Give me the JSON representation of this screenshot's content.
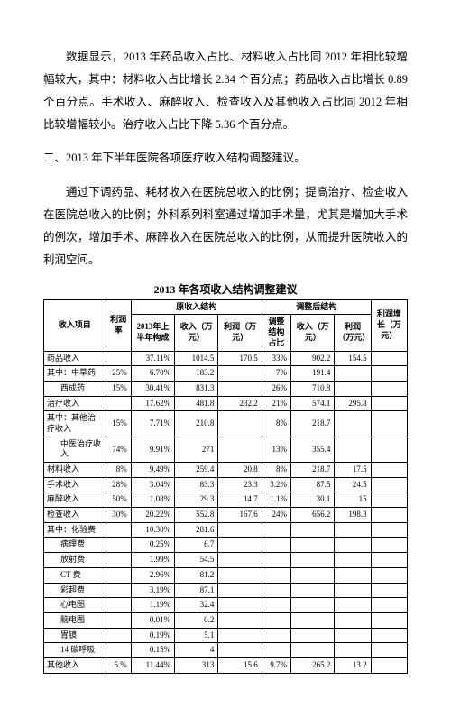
{
  "paragraphs": {
    "p1": "数据显示，2013 年药品收入占比、材料收入占比同 2012 年相比较增幅较大，其中：材料收入占比增长 2.34 个百分点；药品收入占比增长 0.89 个百分点。手术收入、麻醉收入、检查收入及其他收入占比同 2012 年相比较增幅较小。治疗收入占比下降 5.36 个百分点。",
    "p2": "二、2013 年下半年医院各项医疗收入结构调整建议。",
    "p3": "通过下调药品、耗材收入在医院总收入的比例；提高治疗、检查收入在医院总收入的比例；外科系列科室通过增加手术量，尤其是增加大手术的例次，增加手术、麻醉收入在医院总收入的比例，从而提升医院收入的利润空间。"
  },
  "table_title": "2013 年各项收入结构调整建议",
  "headers": {
    "item": "收入项目",
    "rate": "利润率",
    "orig": "原收入结构",
    "adj": "调整后结构",
    "profit_grow": "利润增长（万元）",
    "half2013": "2013年上半年构成",
    "income_w": "收入（万元）",
    "profit_w": "利润（万元）",
    "adj_ratio": "调整结构占比",
    "income_w2": "收入（万元）",
    "profit_w2": "利润（万元）"
  },
  "rows": [
    {
      "label": "药品收入",
      "indent": 0,
      "rate": "",
      "c0": "37.11%",
      "c1": "1014.5",
      "c2": "170.5",
      "c3": "33%",
      "c4": "902.2",
      "c5": "154.5",
      "c6": ""
    },
    {
      "label": "其中：中草药",
      "indent": 0,
      "rate": "25%",
      "c0": "6.70%",
      "c1": "183.2",
      "c2": "",
      "c3": "7%",
      "c4": "191.4",
      "c5": "",
      "c6": ""
    },
    {
      "label": "西成药",
      "indent": 1,
      "rate": "15%",
      "c0": "30.41%",
      "c1": "831.3",
      "c2": "",
      "c3": "26%",
      "c4": "710.8",
      "c5": "",
      "c6": ""
    },
    {
      "label": "治疗收入",
      "indent": 0,
      "rate": "",
      "c0": "17.62%",
      "c1": "481.8",
      "c2": "232.2",
      "c3": "21%",
      "c4": "574.1",
      "c5": "295.8",
      "c6": ""
    },
    {
      "label": "其中：其他治疗收入",
      "indent": 0,
      "rate": "15%",
      "c0": "7.71%",
      "c1": "210.8",
      "c2": "",
      "c3": "8%",
      "c4": "218.7",
      "c5": "",
      "c6": ""
    },
    {
      "label": "中医治疗收入",
      "indent": 1,
      "rate": "74%",
      "c0": "9.91%",
      "c1": "271",
      "c2": "",
      "c3": "13%",
      "c4": "355.4",
      "c5": "",
      "c6": ""
    },
    {
      "label": "材料收入",
      "indent": 0,
      "rate": "8%",
      "c0": "9.49%",
      "c1": "259.4",
      "c2": "20.8",
      "c3": "8%",
      "c4": "218.7",
      "c5": "17.5",
      "c6": ""
    },
    {
      "label": "手术收入",
      "indent": 0,
      "rate": "28%",
      "c0": "3.04%",
      "c1": "83.3",
      "c2": "23.3",
      "c3": "3.2%",
      "c4": "87.5",
      "c5": "24.5",
      "c6": ""
    },
    {
      "label": "麻醉收入",
      "indent": 0,
      "rate": "50%",
      "c0": "1.08%",
      "c1": "29.3",
      "c2": "14.7",
      "c3": "1.1%",
      "c4": "30.1",
      "c5": "15",
      "c6": ""
    },
    {
      "label": "检查收入",
      "indent": 0,
      "rate": "30%",
      "c0": "20.22%",
      "c1": "552.8",
      "c2": "167.6",
      "c3": "24%",
      "c4": "656.2",
      "c5": "198.3",
      "c6": ""
    },
    {
      "label": "其中：化验费",
      "indent": 0,
      "rate": "",
      "c0": "10.30%",
      "c1": "281.6",
      "c2": "",
      "c3": "",
      "c4": "",
      "c5": "",
      "c6": ""
    },
    {
      "label": "病理费",
      "indent": 1,
      "rate": "",
      "c0": "0.25%",
      "c1": "6.7",
      "c2": "",
      "c3": "",
      "c4": "",
      "c5": "",
      "c6": ""
    },
    {
      "label": "放射费",
      "indent": 1,
      "rate": "",
      "c0": "1.99%",
      "c1": "54.5",
      "c2": "",
      "c3": "",
      "c4": "",
      "c5": "",
      "c6": ""
    },
    {
      "label": "CT 费",
      "indent": 1,
      "rate": "",
      "c0": "2.96%",
      "c1": "81.2",
      "c2": "",
      "c3": "",
      "c4": "",
      "c5": "",
      "c6": ""
    },
    {
      "label": "彩超费",
      "indent": 1,
      "rate": "",
      "c0": "3.19%",
      "c1": "87.1",
      "c2": "",
      "c3": "",
      "c4": "",
      "c5": "",
      "c6": ""
    },
    {
      "label": "心电图",
      "indent": 1,
      "rate": "",
      "c0": "1.19%",
      "c1": "32.4",
      "c2": "",
      "c3": "",
      "c4": "",
      "c5": "",
      "c6": ""
    },
    {
      "label": "脑电图",
      "indent": 1,
      "rate": "",
      "c0": "0.01%",
      "c1": "0.2",
      "c2": "",
      "c3": "",
      "c4": "",
      "c5": "",
      "c6": ""
    },
    {
      "label": "胃镜",
      "indent": 1,
      "rate": "",
      "c0": "0.19%",
      "c1": "5.1",
      "c2": "",
      "c3": "",
      "c4": "",
      "c5": "",
      "c6": ""
    },
    {
      "label": "14 碳呼吸",
      "indent": 1,
      "rate": "",
      "c0": "0.15%",
      "c1": "4",
      "c2": "",
      "c3": "",
      "c4": "",
      "c5": "",
      "c6": ""
    },
    {
      "label": "其他收入",
      "indent": 0,
      "rate": "5.%",
      "c0": "11.44%",
      "c1": "313",
      "c2": "15.6",
      "c3": "9.7%",
      "c4": "265.2",
      "c5": "13.2",
      "c6": ""
    }
  ]
}
